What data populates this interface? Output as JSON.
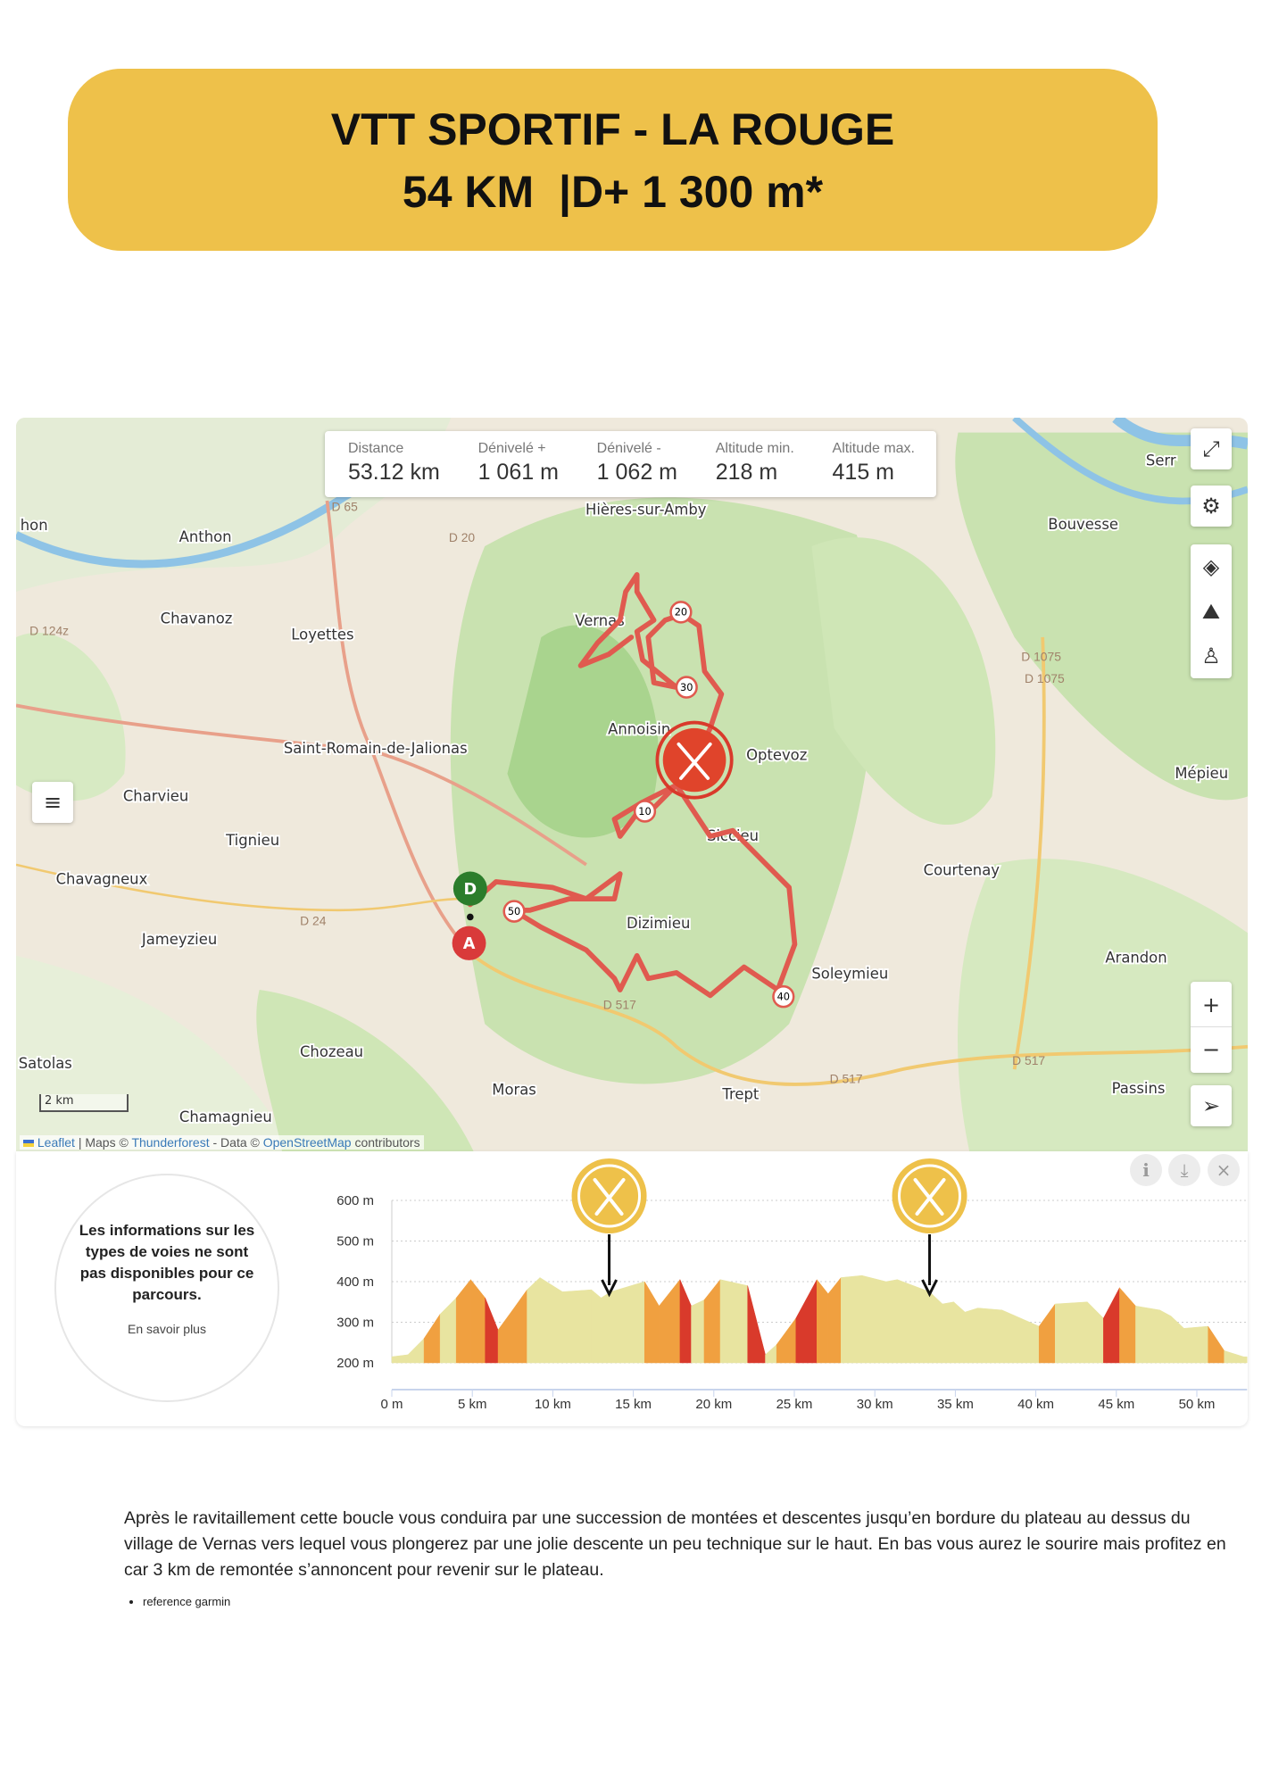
{
  "banner": {
    "line1": "VTT SPORTIF - LA ROUGE",
    "line2": "54 KM  |D+ 1 300 m*",
    "color": "#eec14a"
  },
  "stats": [
    {
      "label": "Distance",
      "value": "53.12 km"
    },
    {
      "label": "Dénivelé +",
      "value": "1 061 m"
    },
    {
      "label": "Dénivelé -",
      "value": "1 062 m"
    },
    {
      "label": "Altitude min.",
      "value": "218 m"
    },
    {
      "label": "Altitude max.",
      "value": "415 m"
    }
  ],
  "map": {
    "places": [
      "hon",
      "Anthon",
      "Chavanoz",
      "Loyettes",
      "Saint-Romain-de-Jalionas",
      "Charvieu",
      "Tignieu",
      "Chavagneux",
      "Jameyzieu",
      "Satolas",
      "Chozeau",
      "Moras",
      "Chamagnieu",
      "Hières-sur-Amby",
      "Vernas",
      "Annoisin",
      "Optevoz",
      "Siccieu",
      "Dizimieu",
      "Courtenay",
      "Soleymieu",
      "Trept",
      "Arandon",
      "Passins",
      "Mépieu",
      "Bouvesse",
      "Serr"
    ],
    "roads": [
      "D 65",
      "D 20",
      "D 124z",
      "D 24",
      "D 517",
      "D 517",
      "D 517",
      "D 1075",
      "D 1075"
    ],
    "km_markers": [
      "20",
      "30",
      "10",
      "50",
      "40"
    ],
    "start_label": "D",
    "end_label": "A",
    "scale": "2 km",
    "attribution": {
      "leaflet": "Leaflet",
      "sep1": " | Maps © ",
      "thunderforest": "Thunderforest",
      "sep2": " - Data © ",
      "osm": "OpenStreetMap",
      "tail": " contributors"
    },
    "route_color": "#e05a4f",
    "controls": [
      "fullscreen-icon",
      "gear-icon",
      "layers-icon",
      "mountain-icon",
      "person-icon",
      "zoom-in-icon",
      "zoom-out-icon",
      "locate-icon",
      "menu-icon"
    ],
    "zoom_in": "+",
    "zoom_out": "−"
  },
  "profile": {
    "info_text": "Les informations sur les types de voies ne sont pas disponibles pour ce parcours.",
    "learn_more": "En savoir plus",
    "icons": {
      "info": "i",
      "download": "⤓",
      "close": "×"
    }
  },
  "chart_data": {
    "type": "area",
    "xlabel": "",
    "ylabel": "",
    "xlim": [
      0,
      53.12
    ],
    "ylim": [
      200,
      600
    ],
    "x_ticks": [
      "0 m",
      "5 km",
      "10 km",
      "15 km",
      "20 km",
      "25 km",
      "30 km",
      "35 km",
      "40 km",
      "45 km",
      "50 km"
    ],
    "y_ticks": [
      "600 m",
      "500 m",
      "400 m",
      "300 m",
      "200 m"
    ],
    "grid": true,
    "x": [
      0,
      1,
      2,
      3,
      4,
      4.9,
      5.8,
      6.6,
      7.5,
      8.4,
      9.2,
      10.6,
      12.4,
      13,
      13.6,
      15.7,
      16.6,
      17.9,
      18.6,
      19.4,
      20.4,
      22.1,
      23.2,
      23.9,
      25.1,
      26.4,
      27.1,
      27.9,
      29.2,
      30.7,
      31.4,
      33.4,
      34.2,
      34.9,
      35.6,
      36.4,
      37.9,
      40.2,
      41.2,
      43.2,
      44.2,
      45.2,
      46.2,
      47.7,
      48.4,
      49.2,
      50.7,
      51.7,
      52.9,
      53.12
    ],
    "y": [
      215,
      220,
      260,
      320,
      360,
      405,
      360,
      281,
      330,
      380,
      410,
      375,
      380,
      360,
      375,
      400,
      340,
      405,
      340,
      355,
      405,
      390,
      220,
      245,
      310,
      405,
      370,
      410,
      415,
      400,
      405,
      375,
      345,
      350,
      325,
      335,
      330,
      290,
      345,
      350,
      310,
      385,
      340,
      330,
      315,
      285,
      290,
      230,
      215,
      215
    ],
    "fill_colors": {
      "flat": "#e8e4a0",
      "moderate": "#f0a040",
      "steep": "#d93a2b"
    },
    "annotations": [
      {
        "type": "restaurant",
        "x": 13.5
      },
      {
        "type": "restaurant",
        "x": 33.4
      }
    ],
    "annotation_color": "#eec14a"
  },
  "description": "Après le ravitaillement cette boucle vous conduira par une succession de montées et descentes jusqu’en bordure du plateau au dessus du village de Vernas vers lequel vous plongerez par une jolie descente un peu technique sur le haut. En bas vous aurez le sourire mais profitez en car 3 km de remontée s’annoncent pour revenir sur le plateau.",
  "bullets": [
    "reference garmin"
  ]
}
